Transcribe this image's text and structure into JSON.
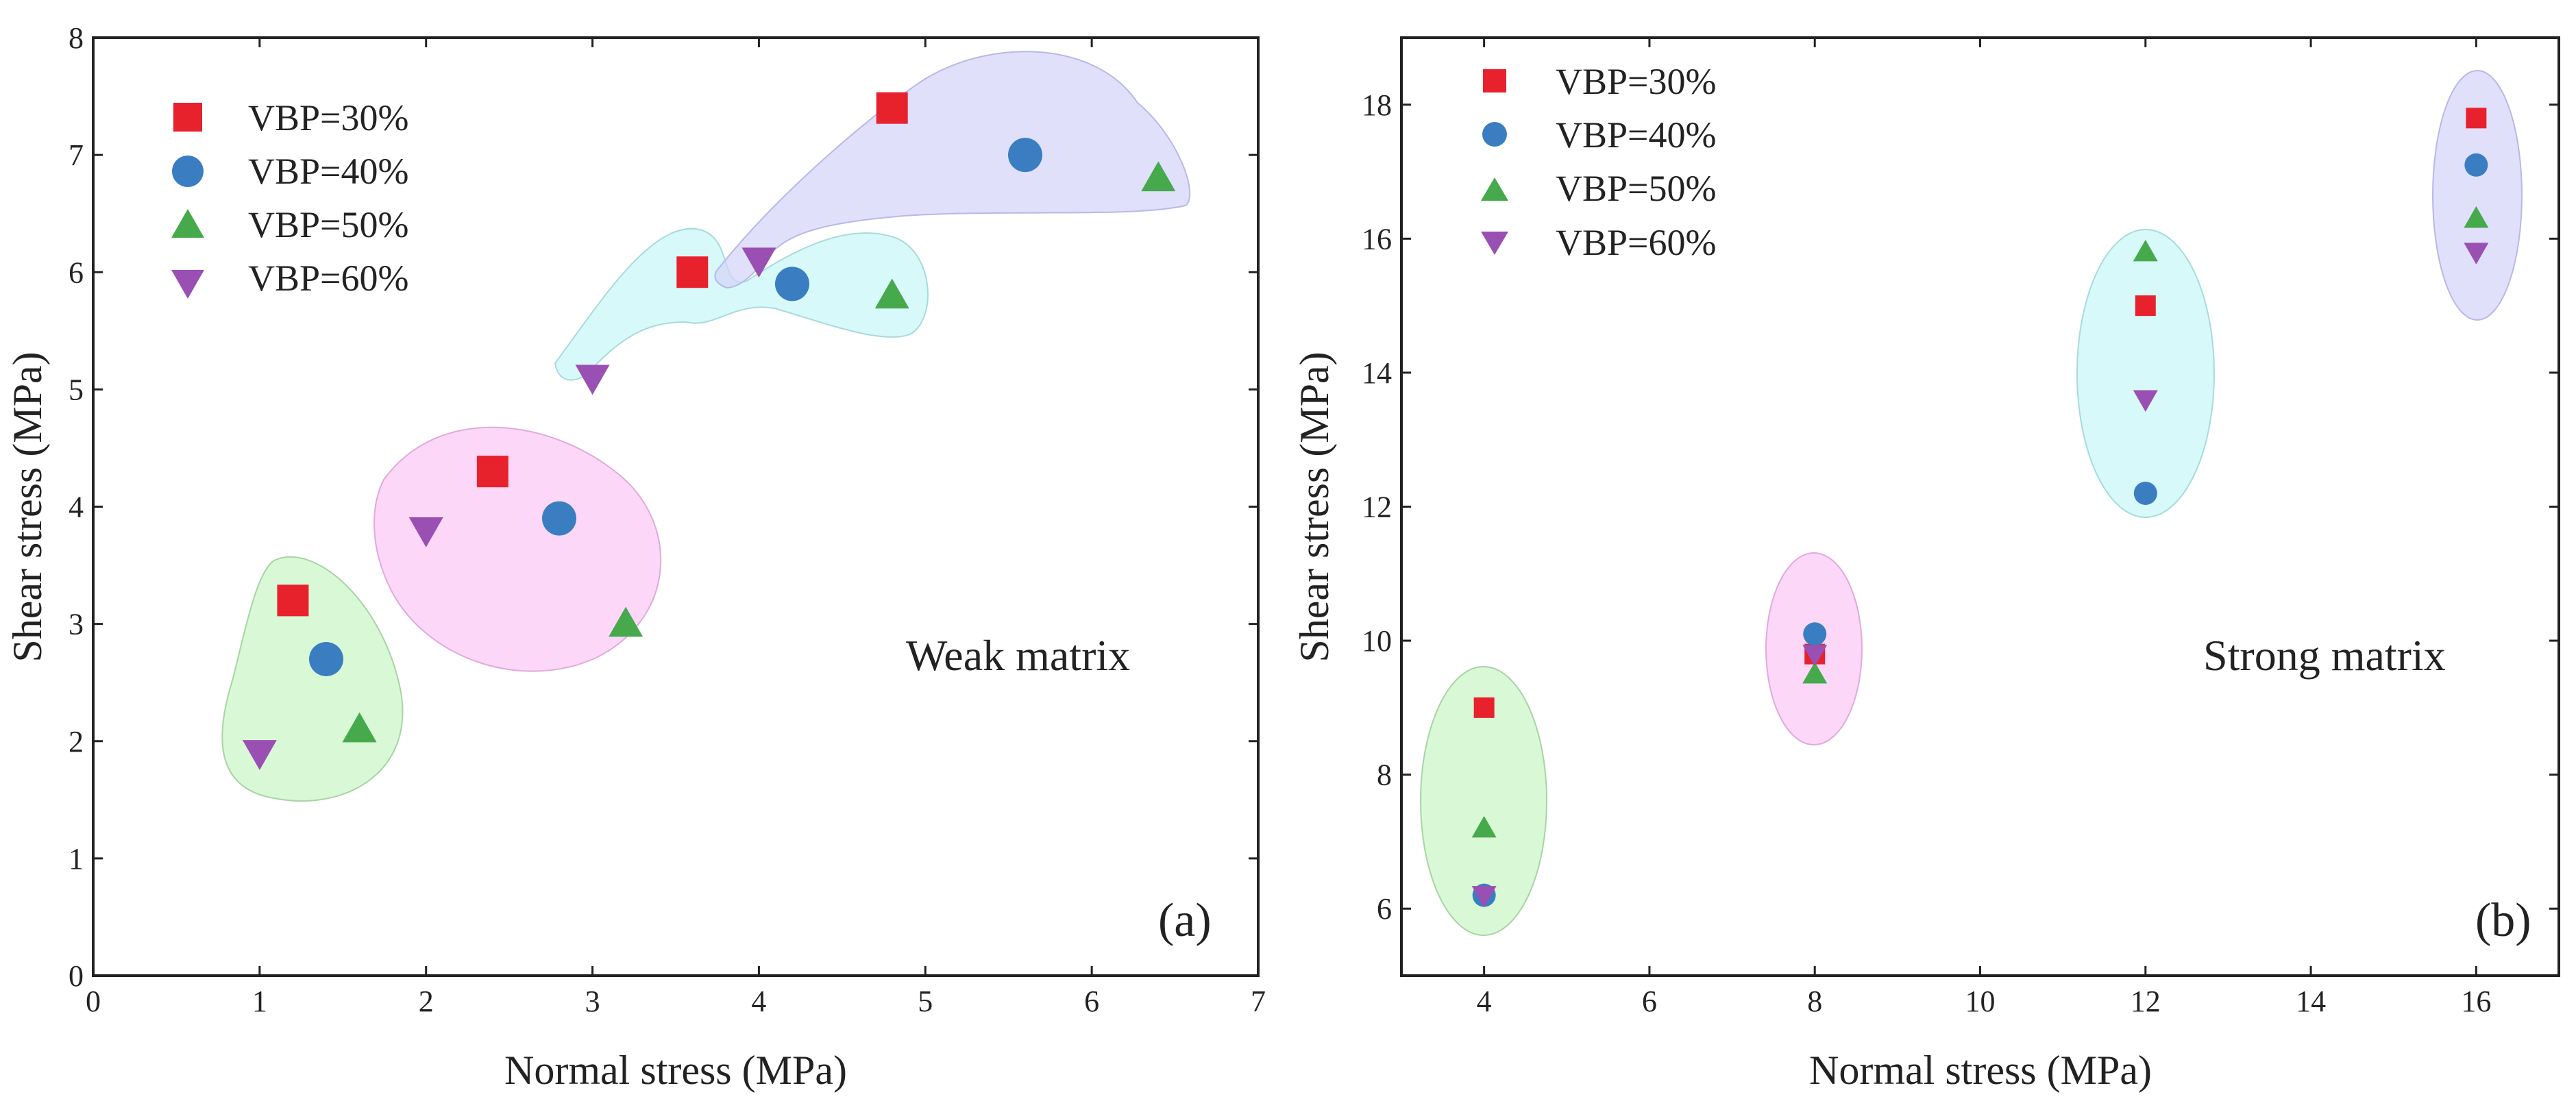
{
  "chart_data": [
    {
      "type": "scatter",
      "panel_label": "(a)",
      "annotation": "Weak matrix",
      "xlabel": "Normal stress (MPa)",
      "ylabel": "Shear stress (MPa)",
      "xlim": [
        0,
        7
      ],
      "ylim": [
        0,
        8
      ],
      "xticks": [
        "0",
        "1",
        "2",
        "3",
        "4",
        "5",
        "6",
        "7"
      ],
      "yticks": [
        "0",
        "1",
        "2",
        "3",
        "4",
        "5",
        "6",
        "7",
        "8"
      ],
      "grid": false,
      "legend_position": "top-left",
      "series": [
        {
          "name": "VBP=30%",
          "marker": "square",
          "color": "#e8222d",
          "x": [
            1.2,
            2.4,
            3.6,
            4.8
          ],
          "y": [
            3.2,
            4.3,
            6.0,
            7.4
          ]
        },
        {
          "name": "VBP=40%",
          "marker": "circle",
          "color": "#3a7dc1",
          "x": [
            1.4,
            2.8,
            4.2,
            5.6
          ],
          "y": [
            2.7,
            3.9,
            5.9,
            7.0
          ]
        },
        {
          "name": "VBP=50%",
          "marker": "triangle-up",
          "color": "#46a94c",
          "x": [
            1.6,
            3.2,
            4.8,
            6.4
          ],
          "y": [
            2.1,
            3.0,
            5.8,
            6.8
          ]
        },
        {
          "name": "VBP=60%",
          "marker": "triangle-down",
          "color": "#9a4fb3",
          "x": [
            1.0,
            2.0,
            3.0,
            4.0
          ],
          "y": [
            1.9,
            3.8,
            5.1,
            6.1
          ]
        }
      ],
      "groups": [
        {
          "name": "group-1",
          "color": "#c9f5c6"
        },
        {
          "name": "group-2",
          "color": "#fbc8f5"
        },
        {
          "name": "group-3",
          "color": "#c8f7f8"
        },
        {
          "name": "group-4",
          "color": "#d4d4f8"
        }
      ]
    },
    {
      "type": "scatter",
      "panel_label": "(b)",
      "annotation": "Strong matrix",
      "xlabel": "Normal stress (MPa)",
      "ylabel": "Shear stress (MPa)",
      "xlim": [
        3,
        17
      ],
      "ylim": [
        5,
        19
      ],
      "xticks": [
        "4",
        "6",
        "8",
        "10",
        "12",
        "14",
        "16"
      ],
      "yticks": [
        "6",
        "8",
        "10",
        "12",
        "14",
        "16",
        "18"
      ],
      "grid": false,
      "legend_position": "top-left",
      "series": [
        {
          "name": "VBP=30%",
          "marker": "square",
          "color": "#e8222d",
          "x": [
            4,
            8,
            12,
            16
          ],
          "y": [
            9.0,
            9.8,
            15.0,
            17.8
          ]
        },
        {
          "name": "VBP=40%",
          "marker": "circle",
          "color": "#3a7dc1",
          "x": [
            4,
            8,
            12,
            16
          ],
          "y": [
            6.2,
            10.1,
            12.2,
            17.1
          ]
        },
        {
          "name": "VBP=50%",
          "marker": "triangle-up",
          "color": "#46a94c",
          "x": [
            4,
            8,
            12,
            16
          ],
          "y": [
            7.2,
            9.5,
            15.8,
            16.3
          ]
        },
        {
          "name": "VBP=60%",
          "marker": "triangle-down",
          "color": "#9a4fb3",
          "x": [
            4,
            8,
            12,
            16
          ],
          "y": [
            6.2,
            9.8,
            13.6,
            15.8
          ]
        }
      ],
      "groups": [
        {
          "name": "group-4MPa",
          "color": "#c9f5c6"
        },
        {
          "name": "group-8MPa",
          "color": "#fbc8f5"
        },
        {
          "name": "group-12MPa",
          "color": "#c8f7f8"
        },
        {
          "name": "group-16MPa",
          "color": "#d4d4f8"
        }
      ]
    }
  ],
  "annotation_color": "#7b3fa6"
}
